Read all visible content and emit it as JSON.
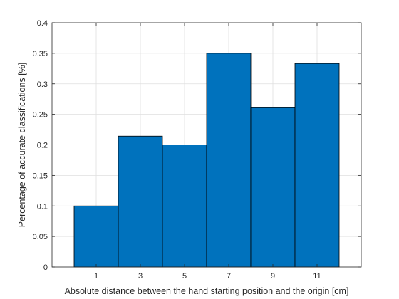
{
  "chart_data": {
    "type": "bar",
    "title": "",
    "xlabel": "Absolute distance between the hand starting position and the origin [cm]",
    "ylabel": "Percentage of accurate classifications [%]",
    "categories": [
      "1",
      "3",
      "5",
      "7",
      "9",
      "11"
    ],
    "x": [
      1,
      3,
      5,
      7,
      9,
      11
    ],
    "values": [
      0.1,
      0.2143,
      0.2,
      0.35,
      0.2609,
      0.3333
    ],
    "xlim": [
      -1,
      13
    ],
    "ylim": [
      0,
      0.4
    ],
    "yticks": [
      0,
      0.05,
      0.1,
      0.15,
      0.2,
      0.25,
      0.3,
      0.35,
      0.4
    ],
    "ytick_labels": [
      "0",
      "0.05",
      "0.1",
      "0.15",
      "0.2",
      "0.25",
      "0.3",
      "0.35",
      "0.4"
    ],
    "bar_color": "#0072BD",
    "bar_edge_color": "#000000",
    "grid": true,
    "legend": "none"
  }
}
